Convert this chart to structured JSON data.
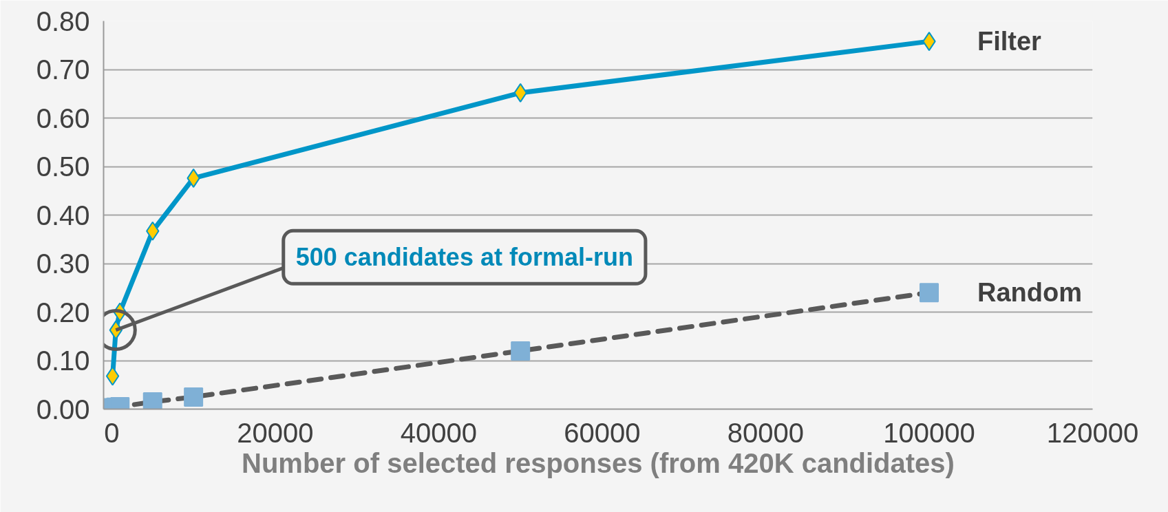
{
  "chart_data": {
    "type": "line",
    "xlabel": "Number of selected responses (from 420K candidates)",
    "xlim": [
      -1000,
      120000
    ],
    "xticks": [
      0,
      20000,
      40000,
      60000,
      80000,
      100000,
      120000
    ],
    "ylim": [
      0,
      0.8
    ],
    "yticks": [
      {
        "value": 0,
        "label": "0.00"
      },
      {
        "value": 0.1,
        "label": "0.10"
      },
      {
        "value": 0.2,
        "label": "0.20"
      },
      {
        "value": 0.3,
        "label": "0.30"
      },
      {
        "value": 0.4,
        "label": "0.40"
      },
      {
        "value": 0.5,
        "label": "0.50"
      },
      {
        "value": 0.6,
        "label": "0.60"
      },
      {
        "value": 0.7,
        "label": "0.70"
      },
      {
        "value": 0.8,
        "label": "0.80"
      }
    ],
    "grid": "y",
    "x": [
      100,
      500,
      1000,
      5000,
      10000,
      50000,
      100000
    ],
    "series": [
      {
        "name": "Filter",
        "color": "#0096c8",
        "marker": "diamond",
        "line_style": "solid",
        "values": [
          0.068,
          0.163,
          0.2,
          0.367,
          0.476,
          0.652,
          0.758
        ]
      },
      {
        "name": "Random",
        "color": "#595959",
        "marker": "square",
        "line_style": "dashed",
        "values": [
          0.003,
          0.004,
          0.005,
          0.015,
          0.025,
          0.12,
          0.24
        ]
      }
    ],
    "annotations": [
      {
        "text": "500 candidates at formal-run",
        "x": 500,
        "y": 0.163
      }
    ]
  }
}
